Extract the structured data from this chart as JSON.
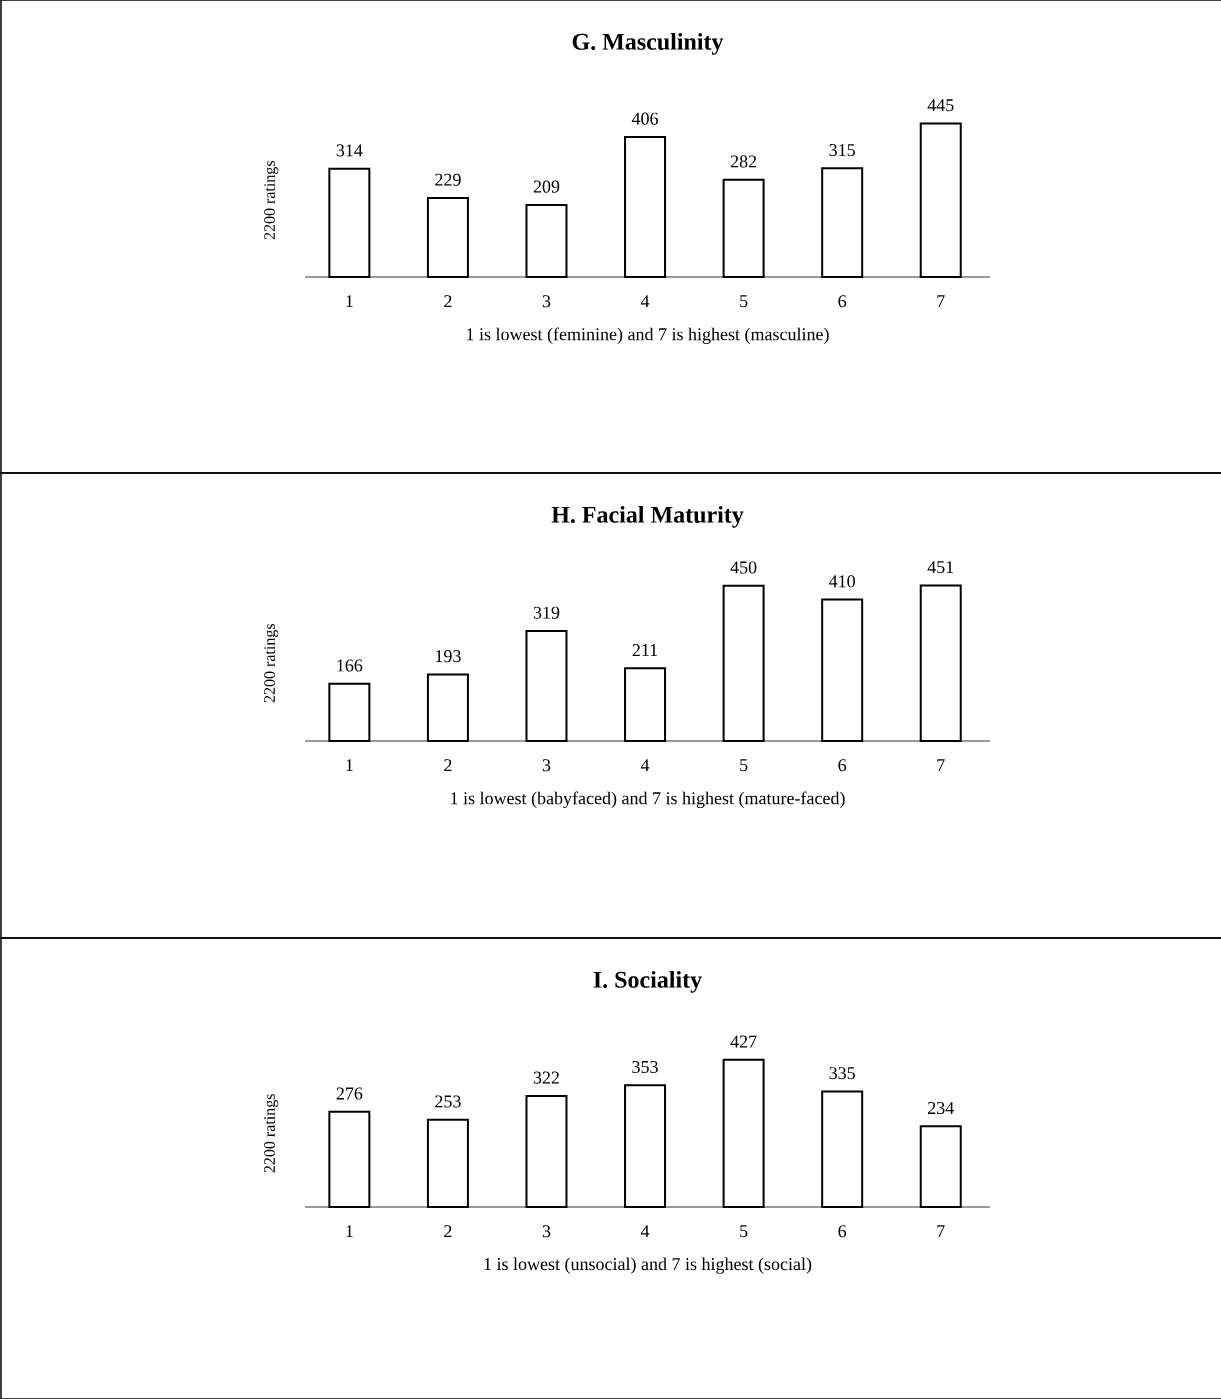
{
  "chart_data": [
    {
      "type": "bar",
      "title": "G. Masculinity",
      "ylabel": "2200 ratings",
      "xlabel": "1 is lowest (feminine) and 7 is highest (masculine)",
      "categories": [
        "1",
        "2",
        "3",
        "4",
        "5",
        "6",
        "7"
      ],
      "values": [
        314,
        229,
        209,
        406,
        282,
        315,
        445
      ],
      "color": "#000000",
      "data_labels": true,
      "tick_labels": "x"
    },
    {
      "type": "bar",
      "title": "H. Facial Maturity",
      "ylabel": "2200 ratings",
      "xlabel": "1 is lowest (babyfaced) and 7 is highest (mature-faced)",
      "categories": [
        "1",
        "2",
        "3",
        "4",
        "5",
        "6",
        "7"
      ],
      "values": [
        166,
        193,
        319,
        211,
        450,
        410,
        451
      ],
      "color": "#000000",
      "data_labels": true,
      "tick_labels": "x"
    },
    {
      "type": "bar",
      "title": "I. Sociality",
      "ylabel": "2200 ratings",
      "xlabel": "1 is lowest (unsocial) and 7 is highest (social)",
      "categories": [
        "1",
        "2",
        "3",
        "4",
        "5",
        "6",
        "7"
      ],
      "values": [
        276,
        253,
        322,
        353,
        427,
        335,
        234
      ],
      "color": "#000000",
      "data_labels": true,
      "tick_labels": "x"
    }
  ]
}
